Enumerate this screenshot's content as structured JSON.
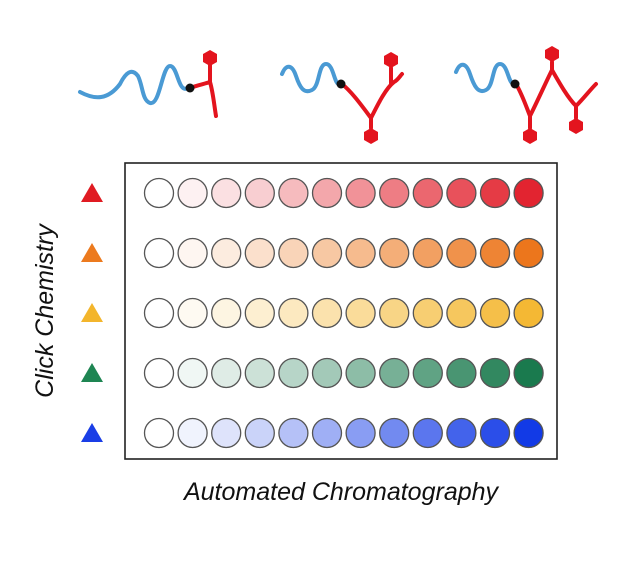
{
  "labels": {
    "x_axis": "Automated Chromatography",
    "y_axis": "Click Chemistry"
  },
  "polymers": [
    {
      "name": "polymer-one-branch",
      "branches": 1
    },
    {
      "name": "polymer-two-branch",
      "branches": 2
    },
    {
      "name": "polymer-three-branch",
      "branches": 3
    }
  ],
  "colors": {
    "strand": "#4a9ad4",
    "chain": "#e3141e",
    "junction": "#111111",
    "frame": "#222222",
    "well_border": "#555555"
  },
  "grid": {
    "columns": 12,
    "rows": [
      {
        "name": "red",
        "marker": "#e01b22",
        "end": [
          226,
          36,
          48
        ]
      },
      {
        "name": "orange",
        "marker": "#ec7a1e",
        "end": [
          236,
          118,
          28
        ]
      },
      {
        "name": "yellow",
        "marker": "#f3b52c",
        "end": [
          244,
          184,
          52
        ]
      },
      {
        "name": "green",
        "marker": "#1e8552",
        "end": [
          26,
          122,
          78
        ]
      },
      {
        "name": "blue",
        "marker": "#1a3ee6",
        "end": [
          18,
          58,
          230
        ]
      }
    ]
  }
}
